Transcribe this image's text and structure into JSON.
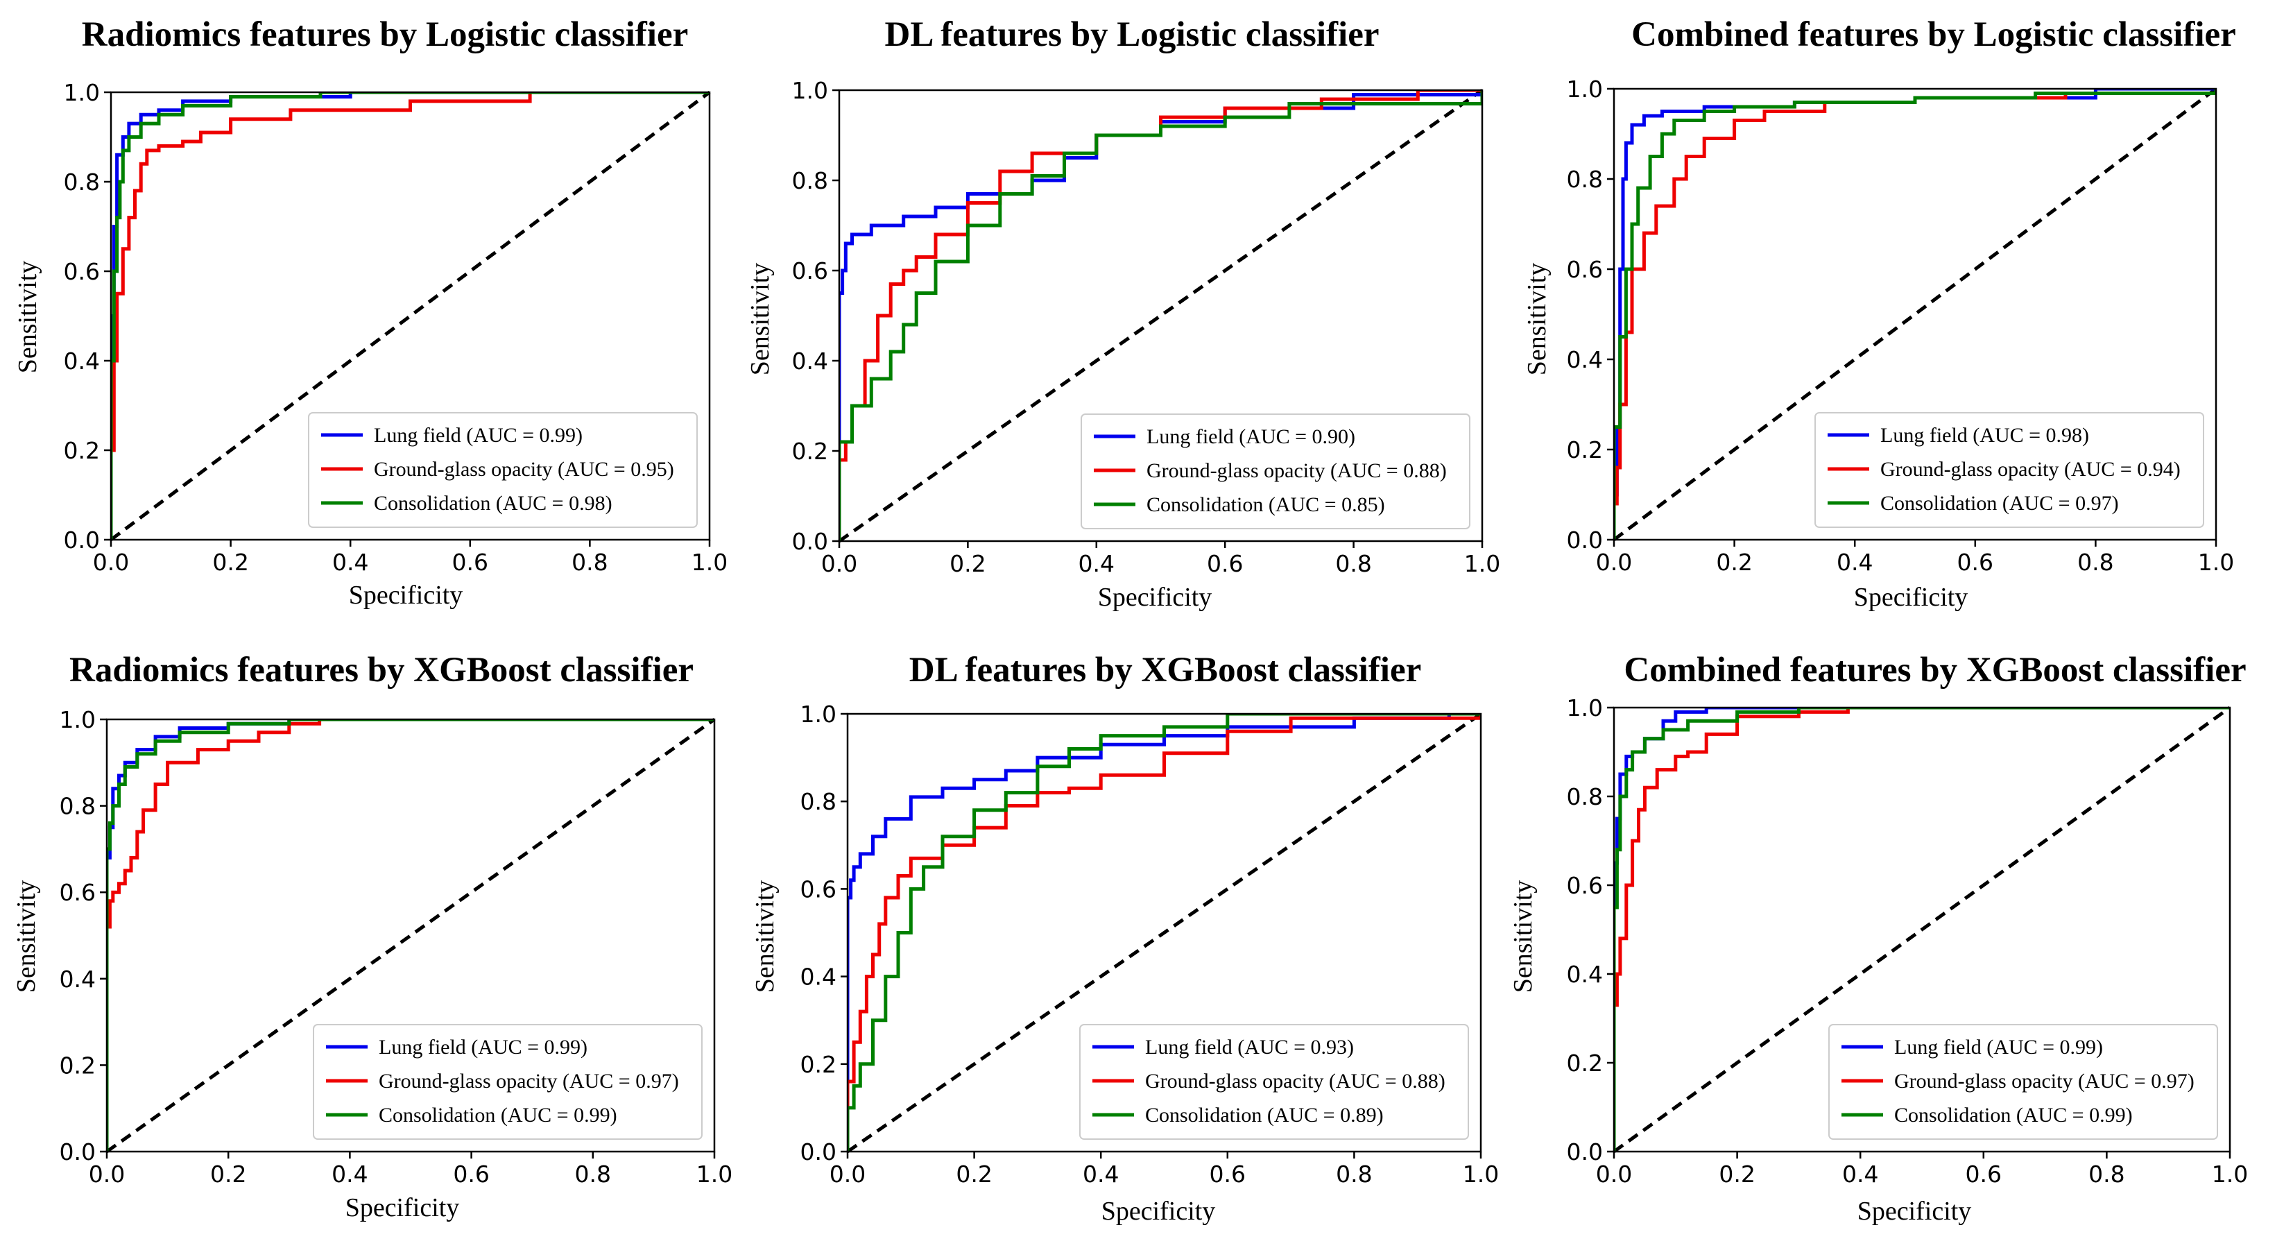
{
  "figure": {
    "colors": {
      "lung_field": "#0000ee",
      "ground_glass": "#ee0000",
      "consolidation": "#008000",
      "diagonal": "#000000"
    }
  },
  "chart_data": [
    {
      "type": "line",
      "title": "Radiomics features by Logistic classifier",
      "xlabel": "Specificity",
      "ylabel": "Sensitivity",
      "xlim": [
        0,
        1
      ],
      "ylim": [
        0,
        1
      ],
      "xticks": [
        "0.0",
        "0.2",
        "0.4",
        "0.6",
        "0.8",
        "1.0"
      ],
      "yticks": [
        "0.0",
        "0.2",
        "0.4",
        "0.6",
        "0.8",
        "1.0"
      ],
      "legend_position": "lower-right",
      "series": [
        {
          "name": "Lung field (AUC = 0.99)",
          "x": [
            0,
            0,
            0.005,
            0.005,
            0.01,
            0.01,
            0.02,
            0.03,
            0.05,
            0.08,
            0.12,
            0.2,
            0.4,
            1.0
          ],
          "y": [
            0,
            0.5,
            0.55,
            0.7,
            0.8,
            0.86,
            0.9,
            0.93,
            0.95,
            0.96,
            0.98,
            0.99,
            1.0,
            1.0
          ]
        },
        {
          "name": "Ground-glass opacity (AUC = 0.95)",
          "x": [
            0,
            0,
            0.005,
            0.01,
            0.02,
            0.03,
            0.04,
            0.05,
            0.06,
            0.08,
            0.12,
            0.15,
            0.2,
            0.3,
            0.5,
            0.7,
            1.0
          ],
          "y": [
            0,
            0.2,
            0.4,
            0.55,
            0.65,
            0.72,
            0.78,
            0.84,
            0.87,
            0.88,
            0.89,
            0.91,
            0.94,
            0.96,
            0.98,
            1.0,
            1.0
          ]
        },
        {
          "name": "Consolidation (AUC = 0.98)",
          "x": [
            0,
            0,
            0.005,
            0.01,
            0.015,
            0.02,
            0.03,
            0.05,
            0.08,
            0.12,
            0.2,
            0.35,
            1.0
          ],
          "y": [
            0,
            0.4,
            0.6,
            0.72,
            0.8,
            0.87,
            0.9,
            0.93,
            0.95,
            0.97,
            0.99,
            1.0,
            1.0
          ]
        }
      ]
    },
    {
      "type": "line",
      "title": "DL features by Logistic classifier",
      "xlabel": "Specificity",
      "ylabel": "Sensitivity",
      "xlim": [
        0,
        1
      ],
      "ylim": [
        0,
        1
      ],
      "xticks": [
        "0.0",
        "0.2",
        "0.4",
        "0.6",
        "0.8",
        "1.0"
      ],
      "yticks": [
        "0.0",
        "0.2",
        "0.4",
        "0.6",
        "0.8",
        "1.0"
      ],
      "legend_position": "lower-right",
      "series": [
        {
          "name": "Lung field (AUC = 0.90)",
          "x": [
            0,
            0,
            0.005,
            0.01,
            0.02,
            0.05,
            0.1,
            0.15,
            0.2,
            0.3,
            0.35,
            0.4,
            0.5,
            0.6,
            0.8,
            1.0
          ],
          "y": [
            0,
            0.55,
            0.6,
            0.66,
            0.68,
            0.7,
            0.72,
            0.74,
            0.77,
            0.8,
            0.85,
            0.9,
            0.93,
            0.96,
            0.99,
            1.0
          ]
        },
        {
          "name": "Ground-glass opacity (AUC = 0.88)",
          "x": [
            0,
            0,
            0.01,
            0.02,
            0.04,
            0.06,
            0.08,
            0.1,
            0.12,
            0.15,
            0.2,
            0.25,
            0.3,
            0.4,
            0.5,
            0.6,
            0.75,
            0.9,
            1.0
          ],
          "y": [
            0,
            0.18,
            0.22,
            0.3,
            0.4,
            0.5,
            0.57,
            0.6,
            0.63,
            0.68,
            0.75,
            0.82,
            0.86,
            0.9,
            0.94,
            0.96,
            0.98,
            1.0,
            1.0
          ]
        },
        {
          "name": "Consolidation (AUC = 0.85)",
          "x": [
            0,
            0,
            0.02,
            0.05,
            0.08,
            0.1,
            0.12,
            0.15,
            0.2,
            0.25,
            0.3,
            0.35,
            0.4,
            0.5,
            0.6,
            0.7,
            1.0
          ],
          "y": [
            0,
            0.22,
            0.3,
            0.36,
            0.42,
            0.48,
            0.55,
            0.62,
            0.7,
            0.77,
            0.81,
            0.86,
            0.9,
            0.92,
            0.94,
            0.97,
            1.0
          ]
        }
      ]
    },
    {
      "type": "line",
      "title": "Combined features by Logistic classifier",
      "xlabel": "Specificity",
      "ylabel": "Sensitivity",
      "xlim": [
        0,
        1
      ],
      "ylim": [
        0,
        1
      ],
      "xticks": [
        "0.0",
        "0.2",
        "0.4",
        "0.6",
        "0.8",
        "1.0"
      ],
      "yticks": [
        "0.0",
        "0.2",
        "0.4",
        "0.6",
        "0.8",
        "1.0"
      ],
      "legend_position": "lower-right",
      "series": [
        {
          "name": "Lung field (AUC = 0.98)",
          "x": [
            0,
            0,
            0.005,
            0.01,
            0.015,
            0.02,
            0.03,
            0.05,
            0.08,
            0.15,
            0.3,
            0.5,
            0.8,
            1.0
          ],
          "y": [
            0,
            0.1,
            0.25,
            0.6,
            0.8,
            0.88,
            0.92,
            0.94,
            0.95,
            0.96,
            0.97,
            0.98,
            1.0,
            1.0
          ]
        },
        {
          "name": "Ground-glass opacity (AUC = 0.94)",
          "x": [
            0,
            0,
            0.005,
            0.01,
            0.02,
            0.03,
            0.05,
            0.07,
            0.1,
            0.12,
            0.15,
            0.2,
            0.25,
            0.35,
            0.5,
            0.75,
            1.0
          ],
          "y": [
            0,
            0.08,
            0.16,
            0.3,
            0.46,
            0.6,
            0.68,
            0.74,
            0.8,
            0.85,
            0.89,
            0.93,
            0.95,
            0.97,
            0.98,
            0.99,
            1.0
          ]
        },
        {
          "name": "Consolidation (AUC = 0.97)",
          "x": [
            0,
            0,
            0.01,
            0.02,
            0.03,
            0.04,
            0.06,
            0.08,
            0.1,
            0.15,
            0.2,
            0.3,
            0.5,
            0.7,
            1.0
          ],
          "y": [
            0,
            0.25,
            0.45,
            0.6,
            0.7,
            0.78,
            0.85,
            0.9,
            0.93,
            0.95,
            0.96,
            0.97,
            0.98,
            0.99,
            1.0
          ]
        }
      ]
    },
    {
      "type": "line",
      "title": "Radiomics features by XGBoost classifier",
      "xlabel": "Specificity",
      "ylabel": "Sensitivity",
      "xlim": [
        0,
        1
      ],
      "ylim": [
        0,
        1
      ],
      "xticks": [
        "0.0",
        "0.2",
        "0.4",
        "0.6",
        "0.8",
        "1.0"
      ],
      "yticks": [
        "0.0",
        "0.2",
        "0.4",
        "0.6",
        "0.8",
        "1.0"
      ],
      "legend_position": "lower-right",
      "series": [
        {
          "name": "Lung field (AUC = 0.99)",
          "x": [
            0,
            0,
            0.005,
            0.01,
            0.02,
            0.03,
            0.05,
            0.08,
            0.12,
            0.2,
            0.3,
            1.0
          ],
          "y": [
            0,
            0.68,
            0.75,
            0.84,
            0.87,
            0.9,
            0.93,
            0.96,
            0.98,
            0.99,
            1.0,
            1.0
          ]
        },
        {
          "name": "Ground-glass opacity (AUC = 0.97)",
          "x": [
            0,
            0,
            0.005,
            0.01,
            0.02,
            0.03,
            0.04,
            0.05,
            0.06,
            0.08,
            0.1,
            0.15,
            0.2,
            0.25,
            0.3,
            0.35,
            1.0
          ],
          "y": [
            0,
            0.52,
            0.58,
            0.6,
            0.62,
            0.65,
            0.68,
            0.74,
            0.79,
            0.85,
            0.9,
            0.93,
            0.95,
            0.97,
            0.99,
            1.0,
            1.0
          ]
        },
        {
          "name": "Consolidation (AUC = 0.99)",
          "x": [
            0,
            0,
            0.005,
            0.01,
            0.02,
            0.03,
            0.05,
            0.08,
            0.12,
            0.2,
            0.3,
            1.0
          ],
          "y": [
            0,
            0.7,
            0.76,
            0.8,
            0.85,
            0.89,
            0.92,
            0.95,
            0.97,
            0.99,
            1.0,
            1.0
          ]
        }
      ]
    },
    {
      "type": "line",
      "title": "DL features by XGBoost classifier",
      "xlabel": "Specificity",
      "ylabel": "Sensitivity",
      "xlim": [
        0,
        1
      ],
      "ylim": [
        0,
        1
      ],
      "xticks": [
        "0.0",
        "0.2",
        "0.4",
        "0.6",
        "0.8",
        "1.0"
      ],
      "yticks": [
        "0.0",
        "0.2",
        "0.4",
        "0.6",
        "0.8",
        "1.0"
      ],
      "legend_position": "lower-right",
      "series": [
        {
          "name": "Lung field (AUC = 0.93)",
          "x": [
            0,
            0,
            0.005,
            0.01,
            0.02,
            0.04,
            0.06,
            0.1,
            0.15,
            0.2,
            0.25,
            0.3,
            0.4,
            0.5,
            0.6,
            0.8,
            0.95,
            1.0
          ],
          "y": [
            0,
            0.58,
            0.62,
            0.65,
            0.68,
            0.72,
            0.76,
            0.81,
            0.83,
            0.85,
            0.87,
            0.9,
            0.93,
            0.95,
            0.97,
            0.99,
            1.0,
            1.0
          ]
        },
        {
          "name": "Ground-glass opacity (AUC = 0.88)",
          "x": [
            0,
            0,
            0.01,
            0.02,
            0.03,
            0.04,
            0.05,
            0.06,
            0.08,
            0.1,
            0.15,
            0.2,
            0.25,
            0.3,
            0.35,
            0.4,
            0.5,
            0.6,
            0.7,
            1.0
          ],
          "y": [
            0,
            0.16,
            0.25,
            0.32,
            0.4,
            0.45,
            0.52,
            0.58,
            0.63,
            0.67,
            0.7,
            0.74,
            0.79,
            0.82,
            0.83,
            0.86,
            0.91,
            0.96,
            0.99,
            1.0
          ]
        },
        {
          "name": "Consolidation (AUC = 0.89)",
          "x": [
            0,
            0,
            0.01,
            0.02,
            0.04,
            0.06,
            0.08,
            0.1,
            0.12,
            0.15,
            0.2,
            0.25,
            0.3,
            0.35,
            0.4,
            0.5,
            0.6,
            1.0
          ],
          "y": [
            0,
            0.1,
            0.15,
            0.2,
            0.3,
            0.4,
            0.5,
            0.6,
            0.65,
            0.72,
            0.78,
            0.82,
            0.88,
            0.92,
            0.95,
            0.97,
            1.0,
            1.0
          ]
        }
      ]
    },
    {
      "type": "line",
      "title": "Combined features by XGBoost classifier",
      "xlabel": "Specificity",
      "ylabel": "Sensitivity",
      "xlim": [
        0,
        1
      ],
      "ylim": [
        0,
        1
      ],
      "xticks": [
        "0.0",
        "0.2",
        "0.4",
        "0.6",
        "0.8",
        "1.0"
      ],
      "yticks": [
        "0.0",
        "0.2",
        "0.4",
        "0.6",
        "0.8",
        "1.0"
      ],
      "legend_position": "lower-right",
      "series": [
        {
          "name": "Lung field (AUC = 0.99)",
          "x": [
            0,
            0,
            0.005,
            0.01,
            0.02,
            0.03,
            0.05,
            0.08,
            0.1,
            0.15,
            1.0
          ],
          "y": [
            0,
            0.65,
            0.75,
            0.85,
            0.89,
            0.9,
            0.93,
            0.97,
            0.99,
            1.0,
            1.0
          ]
        },
        {
          "name": "Ground-glass opacity (AUC = 0.97)",
          "x": [
            0,
            0,
            0.005,
            0.01,
            0.02,
            0.03,
            0.04,
            0.05,
            0.07,
            0.1,
            0.12,
            0.15,
            0.2,
            0.3,
            0.38,
            1.0
          ],
          "y": [
            0,
            0.33,
            0.4,
            0.48,
            0.6,
            0.7,
            0.77,
            0.82,
            0.86,
            0.89,
            0.9,
            0.94,
            0.98,
            0.99,
            1.0,
            1.0
          ]
        },
        {
          "name": "Consolidation (AUC = 0.99)",
          "x": [
            0,
            0,
            0.005,
            0.01,
            0.02,
            0.03,
            0.05,
            0.08,
            0.12,
            0.2,
            0.3,
            1.0
          ],
          "y": [
            0,
            0.55,
            0.68,
            0.8,
            0.86,
            0.9,
            0.93,
            0.95,
            0.97,
            0.99,
            1.0,
            1.0
          ]
        }
      ]
    }
  ]
}
